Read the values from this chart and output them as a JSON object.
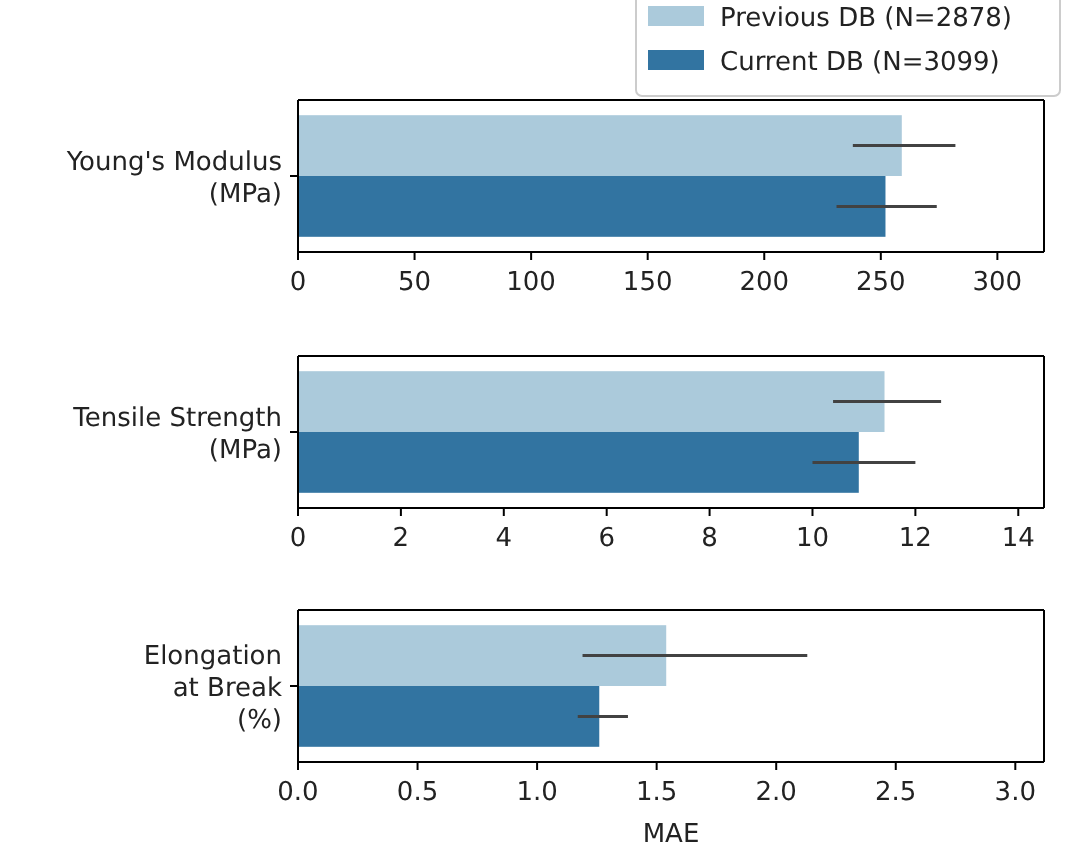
{
  "chart_data": [
    {
      "type": "bar",
      "orientation": "horizontal",
      "categories": [
        "Young's Modulus\n(MPa)"
      ],
      "xlim": [
        0,
        320
      ],
      "xticks": [
        0,
        50,
        100,
        150,
        200,
        250,
        300
      ],
      "legend": "top right",
      "series": [
        {
          "name": "Previous DB (N=2878)",
          "color": "#abcadb",
          "values": [
            259
          ],
          "errors": [
            [
              238,
              282
            ]
          ]
        },
        {
          "name": "Current DB (N=3099)",
          "color": "#3274a1",
          "values": [
            252
          ],
          "errors": [
            [
              231,
              274
            ]
          ]
        }
      ]
    },
    {
      "type": "bar",
      "orientation": "horizontal",
      "categories": [
        "Tensile Strength\n(MPa)"
      ],
      "xlim": [
        0,
        14.5
      ],
      "xticks": [
        0,
        2,
        4,
        6,
        8,
        10,
        12,
        14
      ],
      "series": [
        {
          "color": "#abcadb",
          "values": [
            11.4
          ],
          "errors": [
            [
              10.4,
              12.5
            ]
          ]
        },
        {
          "color": "#3274a1",
          "values": [
            10.9
          ],
          "errors": [
            [
              10.0,
              12.0
            ]
          ]
        }
      ]
    },
    {
      "type": "bar",
      "orientation": "horizontal",
      "categories": [
        "Elongation\nat Break\n(%)"
      ],
      "xlabel": "MAE",
      "xlim": [
        0,
        3.12
      ],
      "xticks": [
        {
          "value": 0,
          "label": "0.0"
        },
        {
          "value": 0.5,
          "label": "0.5"
        },
        {
          "value": 1,
          "label": "1.0"
        },
        {
          "value": 1.5,
          "label": "1.5"
        },
        {
          "value": 2,
          "label": "2.0"
        },
        {
          "value": 2.5,
          "label": "2.5"
        },
        {
          "value": 3,
          "label": "3.0"
        }
      ],
      "series": [
        {
          "color": "#abcadb",
          "values": [
            1.54
          ],
          "errors": [
            [
              1.19,
              2.13
            ]
          ]
        },
        {
          "color": "#3274a1",
          "values": [
            1.26
          ],
          "errors": [
            [
              1.17,
              1.38
            ]
          ]
        }
      ]
    }
  ]
}
